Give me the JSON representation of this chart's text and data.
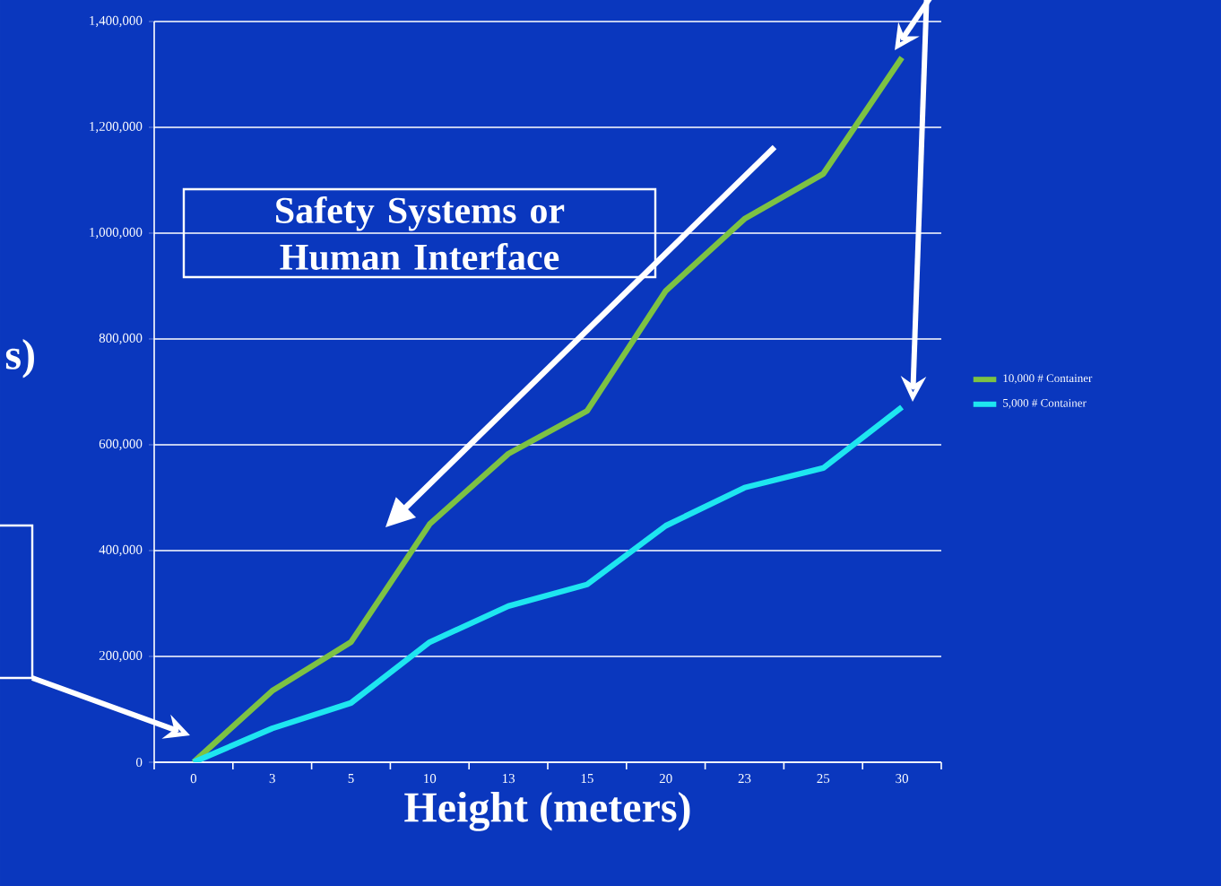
{
  "chart_data": {
    "type": "line",
    "xlabel": "Height (meters)",
    "ylabel": "s)",
    "categories": [
      "0",
      "3",
      "5",
      "10",
      "13",
      "15",
      "20",
      "23",
      "25",
      "30"
    ],
    "series": [
      {
        "name": "10,000 # Container",
        "color": "#7dc243",
        "values": [
          0,
          135000,
          227000,
          450000,
          583000,
          664000,
          891000,
          1027000,
          1112000,
          1332000
        ]
      },
      {
        "name": "5,000 # Container",
        "color": "#1ee6f0",
        "values": [
          0,
          64000,
          112000,
          227000,
          295000,
          336000,
          447000,
          519000,
          556000,
          671000
        ]
      }
    ],
    "ylim": [
      0,
      1400000
    ],
    "yticks": [
      {
        "value": 0,
        "label": "0"
      },
      {
        "value": 200000,
        "label": "200,000"
      },
      {
        "value": 400000,
        "label": "400,000"
      },
      {
        "value": 600000,
        "label": "600,000"
      },
      {
        "value": 800000,
        "label": "800,000"
      },
      {
        "value": 1000000,
        "label": "1,000,000"
      },
      {
        "value": 1200000,
        "label": "1,200,000"
      },
      {
        "value": 1400000,
        "label": "1,400,000"
      }
    ],
    "grid": "y",
    "legend": "right",
    "marker": "none",
    "line_style": "solid",
    "annotations": [
      "Safety Systems or Human Interface"
    ]
  }
}
